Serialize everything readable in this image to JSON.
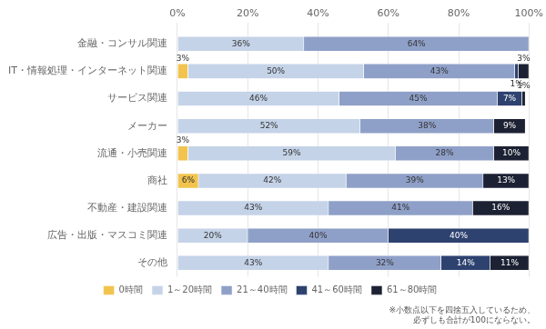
{
  "chart_data": {
    "type": "bar",
    "orientation": "horizontal",
    "stacked": true,
    "categories": [
      "金融・コンサル関連",
      "IT・情報処理・インターネット関連",
      "サービス関連",
      "メーカー",
      "流通・小売関連",
      "商社",
      "不動産・建設関連",
      "広告・出版・マスコミ関連",
      "その他"
    ],
    "series": [
      {
        "name": "0時間",
        "color": "#f2c44e",
        "values": [
          0,
          3,
          0,
          0,
          3,
          6,
          0,
          0,
          0
        ],
        "value_labels": [
          null,
          "3%",
          null,
          null,
          "3%",
          "6%",
          null,
          null,
          null
        ]
      },
      {
        "name": "1～20時間",
        "color": "#c5d3e8",
        "values": [
          36,
          50,
          46,
          52,
          59,
          42,
          43,
          20,
          43
        ],
        "value_labels": [
          "36%",
          "50%",
          "46%",
          "52%",
          "59%",
          "42%",
          "43%",
          "20%",
          "43%"
        ]
      },
      {
        "name": "21～40時間",
        "color": "#8fa0c8",
        "values": [
          64,
          43,
          45,
          38,
          28,
          39,
          41,
          40,
          32
        ],
        "value_labels": [
          "64%",
          "43%",
          "45%",
          "38%",
          "28%",
          "39%",
          "41%",
          "40%",
          "32%"
        ]
      },
      {
        "name": "41～60時間",
        "color": "#2e4270",
        "values": [
          0,
          1,
          7,
          0,
          0,
          0,
          0,
          40,
          14
        ],
        "value_labels": [
          null,
          "1%",
          "7%",
          null,
          null,
          null,
          null,
          "40%",
          "14%"
        ]
      },
      {
        "name": "61～80時間",
        "color": "#1c2133",
        "values": [
          0,
          3,
          1,
          9,
          10,
          13,
          16,
          0,
          11
        ],
        "value_labels": [
          null,
          "3%",
          "1%",
          "9%",
          "10%",
          "13%",
          "16%",
          null,
          "11%"
        ]
      }
    ],
    "xlim": [
      0,
      100
    ],
    "xticks": [
      {
        "value": 0,
        "label": "0%"
      },
      {
        "value": 20,
        "label": "20%"
      },
      {
        "value": 40,
        "label": "40%"
      },
      {
        "value": 60,
        "label": "60%"
      },
      {
        "value": 80,
        "label": "80%"
      },
      {
        "value": 100,
        "label": "100%"
      }
    ],
    "grid": true,
    "legend": "bottom",
    "data_labels": true,
    "annotations": [
      "※小数点以下を四捨五入しているため、\n必ずしも合計が100にならない。"
    ]
  }
}
